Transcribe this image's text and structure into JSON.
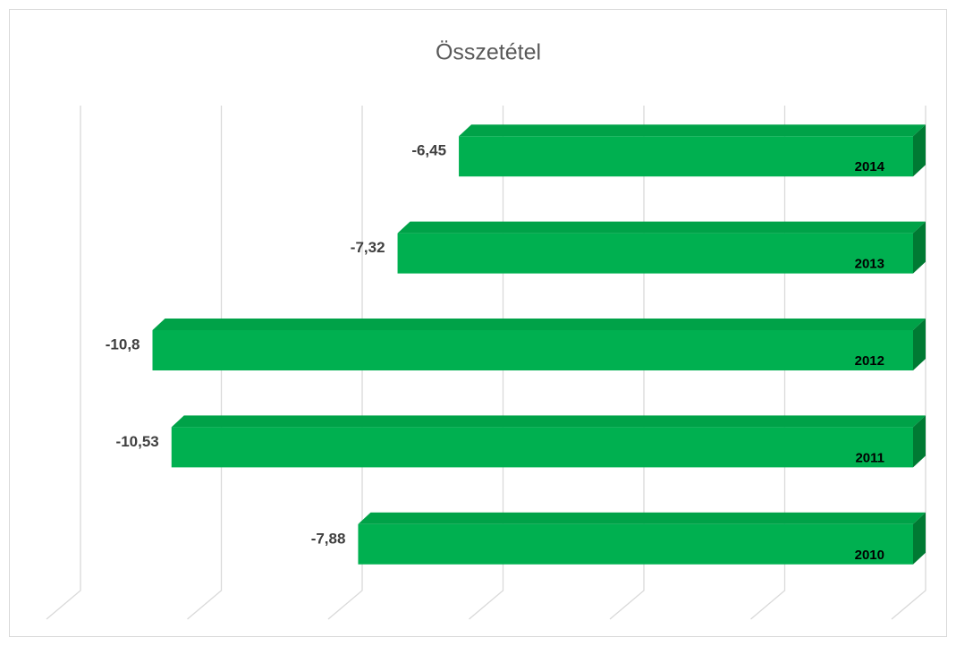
{
  "chart_data": {
    "type": "bar3d",
    "orientation": "horizontal",
    "title": "Összetétel",
    "categories": [
      "2010",
      "2011",
      "2012",
      "2013",
      "2014"
    ],
    "values": [
      -7.88,
      -10.53,
      -10.8,
      -7.32,
      -6.45
    ],
    "value_labels": [
      "-7,88",
      "-10,53",
      "-10,8",
      "-7,32",
      "-6,45"
    ],
    "color": "#00b050",
    "xlim": [
      -12,
      0
    ],
    "xticks": [
      -12,
      -10,
      -8,
      -6,
      -4,
      -2,
      0
    ],
    "grid": true
  }
}
